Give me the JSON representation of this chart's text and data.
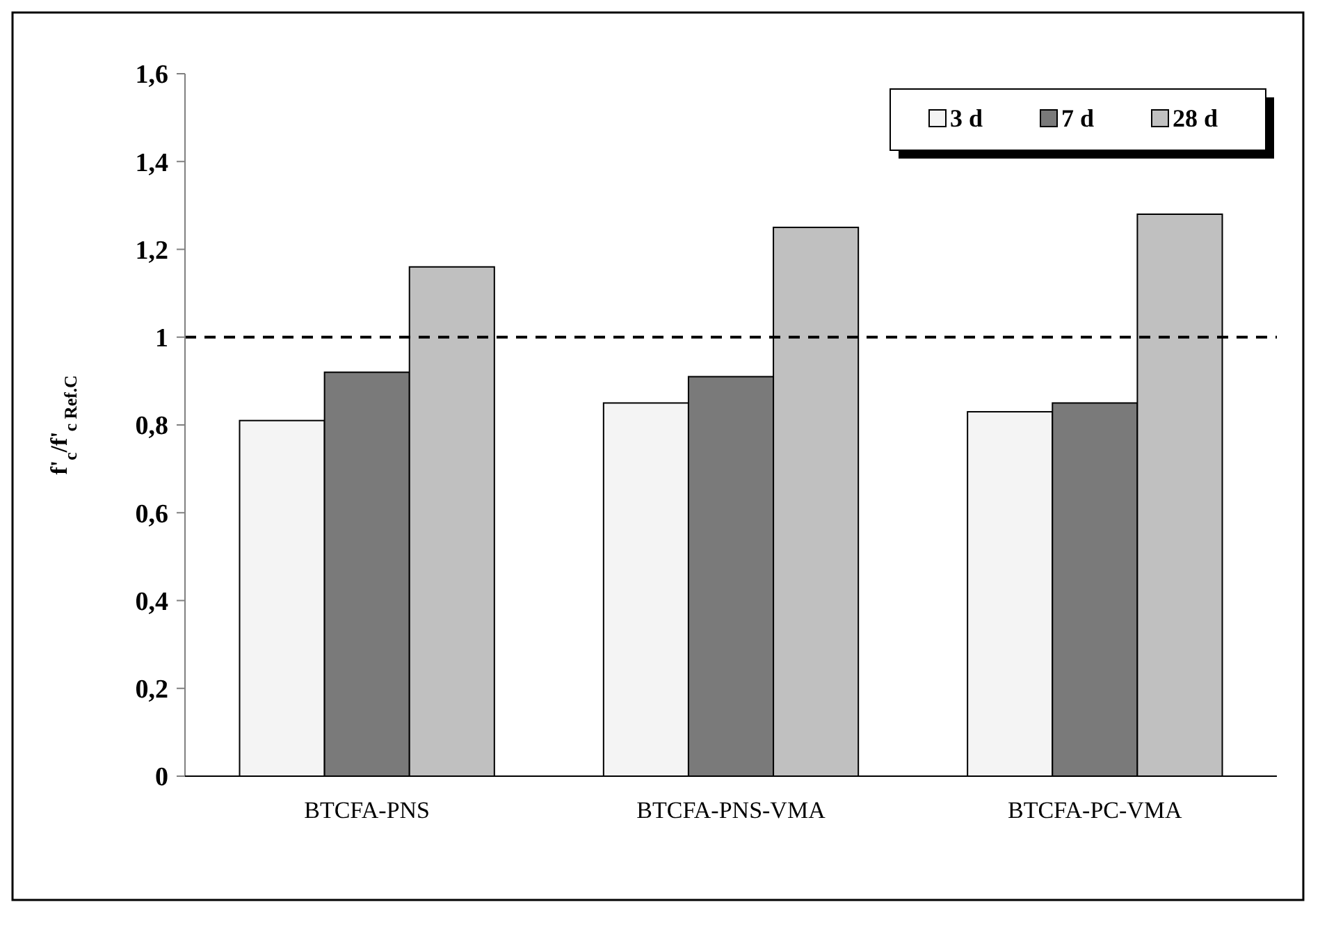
{
  "chart_data": {
    "type": "bar",
    "ylabel": "f'$_{c}$/f'$_{c Ref.C}$",
    "categories": [
      "BTCFA-PNS",
      "BTCFA-PNS-VMA",
      "BTCFA-PC-VMA"
    ],
    "series": [
      {
        "name": "3 d",
        "color": "#f4f4f4",
        "values": [
          0.81,
          0.85,
          0.83
        ]
      },
      {
        "name": "7 d",
        "color": "#7a7a7a",
        "values": [
          0.92,
          0.91,
          0.85
        ]
      },
      {
        "name": "28 d",
        "color": "#c0c0c0",
        "values": [
          1.16,
          1.25,
          1.28
        ]
      }
    ],
    "ylim": [
      0,
      1.6
    ],
    "yticks": [
      0,
      {
        "value": 0.2,
        "label": "0,2"
      },
      {
        "value": 0.4,
        "label": "0,4"
      },
      {
        "value": 0.6,
        "label": "0,6"
      },
      {
        "value": 0.8,
        "label": "0,8"
      },
      1,
      {
        "value": 1.2,
        "label": "1,2"
      },
      {
        "value": 1.4,
        "label": "1,4"
      },
      {
        "value": 1.6,
        "label": "1,6"
      }
    ],
    "ref_lines": [
      {
        "axis": "y",
        "value": 1,
        "color": "#000000",
        "line_style": "dashed"
      }
    ],
    "grid": false,
    "legend": "top right"
  }
}
